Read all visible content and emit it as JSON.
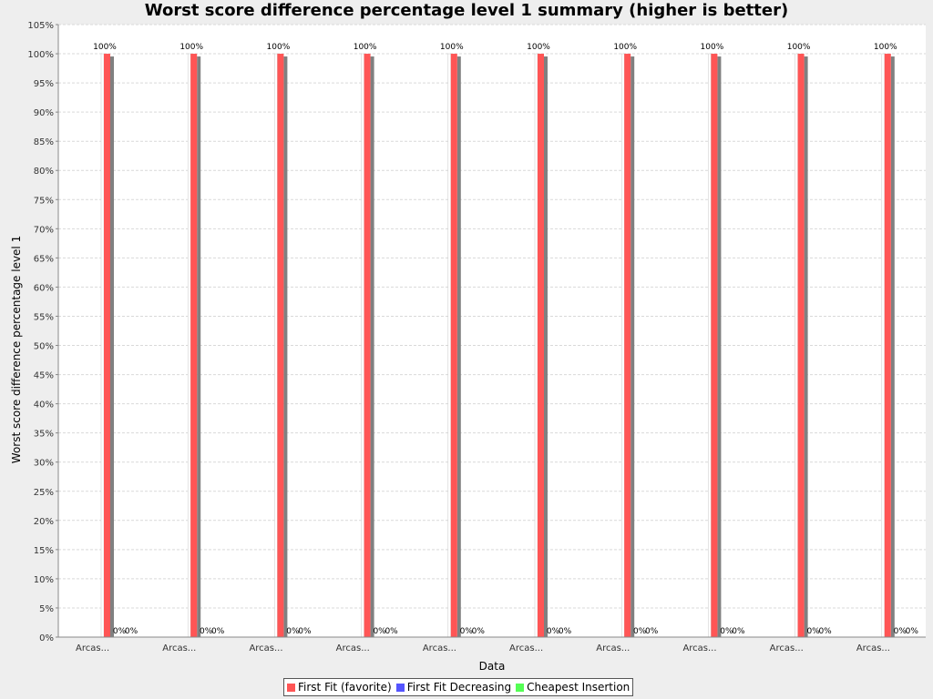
{
  "chart_data": {
    "type": "bar",
    "title": "Worst score difference percentage level 1 summary (higher is better)",
    "xlabel": "Data",
    "ylabel": "Worst score difference percentage level 1",
    "ylim": [
      0,
      105
    ],
    "ytick_step": 5,
    "y_tick_suffix": "%",
    "grid": true,
    "legend_position": "bottom",
    "categories": [
      "Arcas...",
      "Arcas...",
      "Arcas...",
      "Arcas...",
      "Arcas...",
      "Arcas...",
      "Arcas...",
      "Arcas...",
      "Arcas...",
      "Arcas..."
    ],
    "series": [
      {
        "name": "First Fit (favorite)",
        "color": "#ff5555",
        "values": [
          100,
          100,
          100,
          100,
          100,
          100,
          100,
          100,
          100,
          100
        ],
        "value_labels": [
          "100%",
          "100%",
          "100%",
          "100%",
          "100%",
          "100%",
          "100%",
          "100%",
          "100%",
          "100%"
        ]
      },
      {
        "name": "First Fit Decreasing",
        "color": "#5555ff",
        "values": [
          0,
          0,
          0,
          0,
          0,
          0,
          0,
          0,
          0,
          0
        ],
        "value_labels": [
          "0%",
          "0%",
          "0%",
          "0%",
          "0%",
          "0%",
          "0%",
          "0%",
          "0%",
          "0%"
        ]
      },
      {
        "name": "Cheapest Insertion",
        "color": "#55ff55",
        "values": [
          0,
          0,
          0,
          0,
          0,
          0,
          0,
          0,
          0,
          0
        ],
        "value_labels": [
          "0%",
          "0%",
          "0%",
          "0%",
          "0%",
          "0%",
          "0%",
          "0%",
          "0%",
          "0%"
        ]
      }
    ]
  }
}
